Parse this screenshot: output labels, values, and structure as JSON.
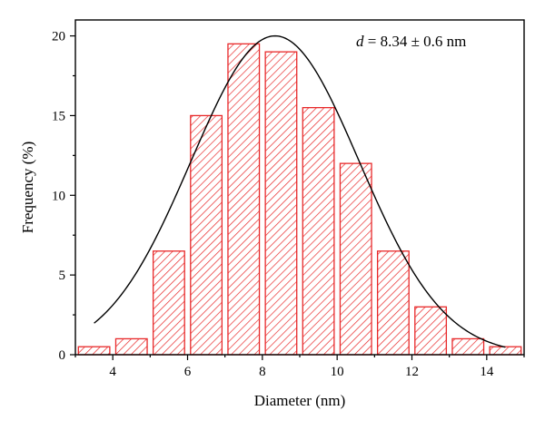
{
  "chart_data": {
    "type": "bar",
    "subtype": "histogram",
    "xlabel": "Diameter (nm)",
    "ylabel": "Frequency (%)",
    "xlim": [
      3,
      15
    ],
    "ylim": [
      0,
      21
    ],
    "bin_width": 1,
    "x": [
      3.5,
      4.5,
      5.5,
      6.5,
      7.5,
      8.5,
      9.5,
      10.5,
      11.5,
      12.5,
      13.5,
      14.5
    ],
    "values": [
      0.5,
      1,
      6.5,
      15,
      19.5,
      19,
      15.5,
      12,
      6.5,
      3,
      1,
      0.5
    ],
    "xticks": [
      4,
      6,
      8,
      10,
      12,
      14
    ],
    "yticks": [
      0,
      5,
      10,
      15,
      20
    ],
    "bar_style": "hatched",
    "bar_color": "#e8292a",
    "fit": {
      "type": "gaussian",
      "mean": 8.34,
      "peak": 20,
      "sigma": 2.25,
      "range": [
        3.5,
        14.5
      ],
      "color": "#000000"
    },
    "annotation": {
      "italic_part": "d",
      "text": " = 8.34 ± 0.6 nm"
    }
  }
}
